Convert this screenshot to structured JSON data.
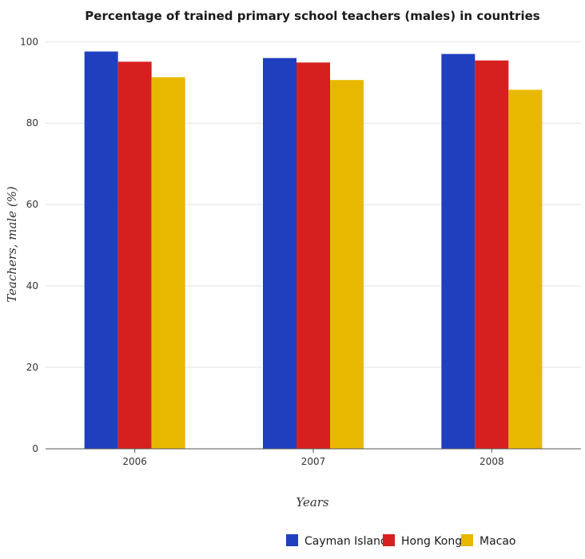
{
  "chart_data": {
    "type": "bar",
    "title": "Percentage of trained primary school teachers (males) in countries",
    "xlabel": "Years",
    "ylabel": "Teachers, male (%)",
    "categories": [
      "2006",
      "2007",
      "2008"
    ],
    "series": [
      {
        "name": "Cayman Islands",
        "color": "#1f3fbf",
        "values": [
          97.6,
          96.0,
          97.0
        ]
      },
      {
        "name": "Hong Kong",
        "color": "#d62020",
        "values": [
          95.1,
          94.9,
          95.4
        ]
      },
      {
        "name": "Macao",
        "color": "#e8b800",
        "values": [
          91.3,
          90.6,
          88.2
        ]
      }
    ],
    "ylim": [
      0,
      103
    ],
    "yticks": [
      "0",
      "20",
      "40",
      "60",
      "80",
      "100"
    ],
    "grid": true,
    "legend": "bottom-right"
  }
}
